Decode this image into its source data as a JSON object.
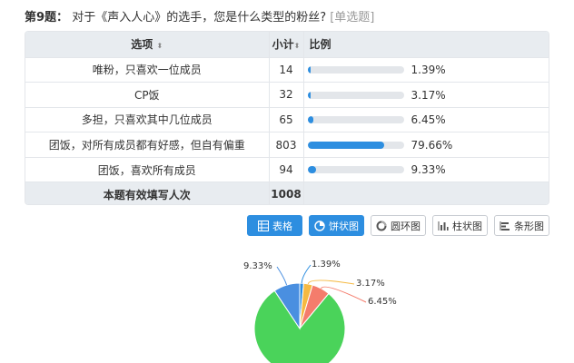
{
  "question": {
    "number": "第9题：",
    "text": "对于《声入人心》的选手，您是什么类型的粉丝?",
    "type": "[单选题]"
  },
  "table": {
    "headers": {
      "option": "选项",
      "count": "小计",
      "percent": "比例",
      "sort_icon": "⬍"
    },
    "rows": [
      {
        "option": "唯粉，只喜欢一位成员",
        "count": "14",
        "percent": "1.39%",
        "value": 1.39
      },
      {
        "option": "CP饭",
        "count": "32",
        "percent": "3.17%",
        "value": 3.17
      },
      {
        "option": "多担，只喜欢其中几位成员",
        "count": "65",
        "percent": "6.45%",
        "value": 6.45
      },
      {
        "option": "团饭，对所有成员都有好感，但自有偏重",
        "count": "803",
        "percent": "79.66%",
        "value": 79.66
      },
      {
        "option": "团饭，喜欢所有成员",
        "count": "94",
        "percent": "9.33%",
        "value": 9.33
      }
    ],
    "total": {
      "label": "本题有效填写人次",
      "count": "1008"
    },
    "bar_color": "#2d8ee0"
  },
  "buttons": [
    {
      "label": "表格",
      "icon": "table-icon",
      "active": true
    },
    {
      "label": "饼状图",
      "icon": "pie-chart-icon",
      "active": true
    },
    {
      "label": "圆环图",
      "icon": "ring-chart-icon",
      "active": false
    },
    {
      "label": "柱状图",
      "icon": "column-chart-icon",
      "active": false
    },
    {
      "label": "条形图",
      "icon": "bar-chart-icon",
      "active": false
    }
  ],
  "pie": {
    "labels": [
      "9.33%",
      "1.39%",
      "3.17%",
      "6.45%"
    ],
    "colors": [
      "#4ad35a",
      "#2d8ee0",
      "#f5b942",
      "#f47c6c",
      "#4a8fe0"
    ]
  }
}
